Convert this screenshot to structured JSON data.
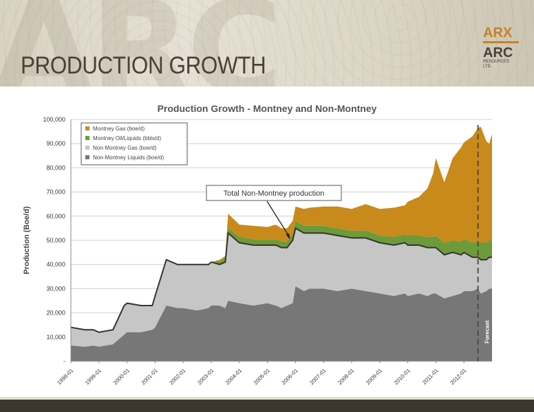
{
  "slide": {
    "title": "PRODUCTION GROWTH",
    "logo_top": "ARX",
    "logo_main": "ARC",
    "logo_sub_1": "RESOURCES",
    "logo_sub_2": "LTD."
  },
  "colors": {
    "montney_gas": "#c98a1c",
    "montney_oil": "#6d9a3a",
    "non_montney_gas": "#c6c6c6",
    "non_montney_liquids": "#777777",
    "total_line": "#333333"
  },
  "chart_data": {
    "type": "area",
    "title": "Production Growth - Montney and Non-Montney",
    "xlabel": "",
    "ylabel": "Production (Boe/d)",
    "ylim": [
      0,
      100000
    ],
    "yticks": [
      "-",
      "10,000",
      "20,000",
      "30,000",
      "40,000",
      "50,000",
      "60,000",
      "70,000",
      "80,000",
      "90,000",
      "100,000"
    ],
    "xlim": [
      1998.0,
      2013.0
    ],
    "xticks": [
      "1998-01",
      "1999-01",
      "2000-01",
      "2001-01",
      "2002-01",
      "2003-01",
      "2004-01",
      "2005-01",
      "2006-01",
      "2007-01",
      "2008-01",
      "2009-01",
      "2010-01",
      "2011-01",
      "2012-01"
    ],
    "stacked": true,
    "grid": true,
    "legend_position": "top-left",
    "x": [
      1998.0,
      1998.5,
      1998.8,
      1999.0,
      1999.5,
      1999.9,
      2000.0,
      2000.5,
      2000.9,
      2001.0,
      2001.4,
      2001.8,
      2002.0,
      2002.5,
      2002.9,
      2003.0,
      2003.3,
      2003.5,
      2003.6,
      2004.0,
      2004.5,
      2005.0,
      2005.3,
      2005.5,
      2005.7,
      2005.9,
      2006.0,
      2006.3,
      2006.5,
      2007.0,
      2007.5,
      2008.0,
      2008.5,
      2009.0,
      2009.5,
      2009.9,
      2010.0,
      2010.4,
      2010.7,
      2010.9,
      2011.0,
      2011.3,
      2011.6,
      2011.9,
      2012.0,
      2012.3,
      2012.5,
      2012.6,
      2012.8,
      2012.9,
      2013.0
    ],
    "series": [
      {
        "name": "Non-Montney Liquids (boe/d)",
        "values": [
          6500,
          6000,
          6500,
          6000,
          7000,
          11000,
          12000,
          12000,
          13000,
          14000,
          23000,
          22000,
          22000,
          21000,
          22000,
          23000,
          23000,
          22000,
          25000,
          24000,
          23000,
          24000,
          23000,
          22000,
          23000,
          24000,
          31000,
          29000,
          30000,
          30000,
          29000,
          30000,
          29000,
          28000,
          27000,
          28000,
          27000,
          28000,
          27000,
          28000,
          28000,
          26000,
          27000,
          28000,
          29000,
          29000,
          30000,
          28000,
          29000,
          30000,
          30000
        ]
      },
      {
        "name": "Non-Montney Gas (boe/d)",
        "values": [
          7500,
          7000,
          6500,
          6000,
          6000,
          12000,
          12000,
          11000,
          10000,
          13000,
          19000,
          18000,
          18000,
          19000,
          18000,
          18000,
          17000,
          19000,
          28000,
          25000,
          25000,
          24000,
          25000,
          25000,
          24000,
          26000,
          24000,
          24000,
          23000,
          23000,
          23000,
          21000,
          22000,
          21000,
          21000,
          21000,
          21000,
          20000,
          20000,
          19000,
          19000,
          18000,
          18000,
          16000,
          16000,
          14000,
          13000,
          14000,
          13000,
          13000,
          13000
        ]
      },
      {
        "name": "Montney Oil/Liquids (bbls/d)",
        "values": [
          0,
          0,
          0,
          0,
          0,
          0,
          0,
          0,
          0,
          0,
          0,
          0,
          0,
          0,
          0,
          0,
          1500,
          1500,
          2000,
          2500,
          2500,
          2500,
          2500,
          2500,
          2500,
          2500,
          3000,
          3000,
          3000,
          3000,
          3000,
          3000,
          3000,
          3000,
          3500,
          3500,
          4000,
          4000,
          4500,
          4500,
          5000,
          5000,
          5000,
          5500,
          5500,
          6000,
          6500,
          7000,
          7000,
          7000,
          7000
        ]
      },
      {
        "name": "Montney Gas (boe/d)",
        "values": [
          0,
          0,
          0,
          0,
          0,
          0,
          0,
          0,
          0,
          0,
          0,
          0,
          0,
          0,
          0,
          0,
          500,
          1000,
          6000,
          5000,
          5500,
          5000,
          6000,
          5500,
          5500,
          5500,
          6000,
          7000,
          7500,
          8000,
          9000,
          9000,
          11000,
          11000,
          12000,
          12000,
          14000,
          16000,
          20000,
          26000,
          32000,
          25000,
          34000,
          39000,
          40000,
          44000,
          47000,
          48000,
          42000,
          40000,
          44000
        ]
      }
    ],
    "annotations": [
      {
        "text": "Total Non-Montney production",
        "arrow_to": {
          "x": 2005.8,
          "y": 50000
        }
      },
      {
        "text": "Forecast",
        "x": 2012.5,
        "style": "dashed-vertical-line"
      }
    ]
  }
}
